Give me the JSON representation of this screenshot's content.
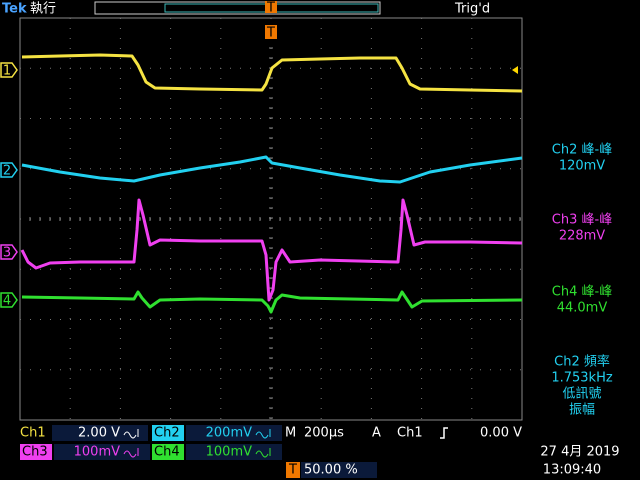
{
  "header": {
    "brand": "Tek",
    "mode": "執行",
    "trigger_status": "Trig'd",
    "trigger_marker": "T"
  },
  "channel_markers": [
    "1",
    "2",
    "3",
    "4"
  ],
  "measurements": [
    {
      "label": "Ch2 峰-峰",
      "value": "120mV"
    },
    {
      "label": "Ch3 峰-峰",
      "value": "228mV"
    },
    {
      "label": "Ch4 峰-峰",
      "value": "44.0mV"
    },
    {
      "label": "Ch2 頻率",
      "value": "1.753kHz",
      "warning": [
        "低訊號",
        "振幅"
      ]
    }
  ],
  "status": {
    "ch1": {
      "name": "Ch1",
      "scale": "2.00 V"
    },
    "ch2": {
      "name": "Ch2",
      "scale": "200mV"
    },
    "ch3": {
      "name": "Ch3",
      "scale": "100mV"
    },
    "ch4": {
      "name": "Ch4",
      "scale": "100mV"
    },
    "timebase": {
      "label": "M",
      "value": "200µs"
    },
    "trigger": {
      "mode": "A",
      "source": "Ch1",
      "level": "0.00 V"
    },
    "trigger_position": {
      "marker": "T",
      "value": "50.00 %"
    },
    "date": "27 4月  2019",
    "time": "13:09:40"
  }
}
